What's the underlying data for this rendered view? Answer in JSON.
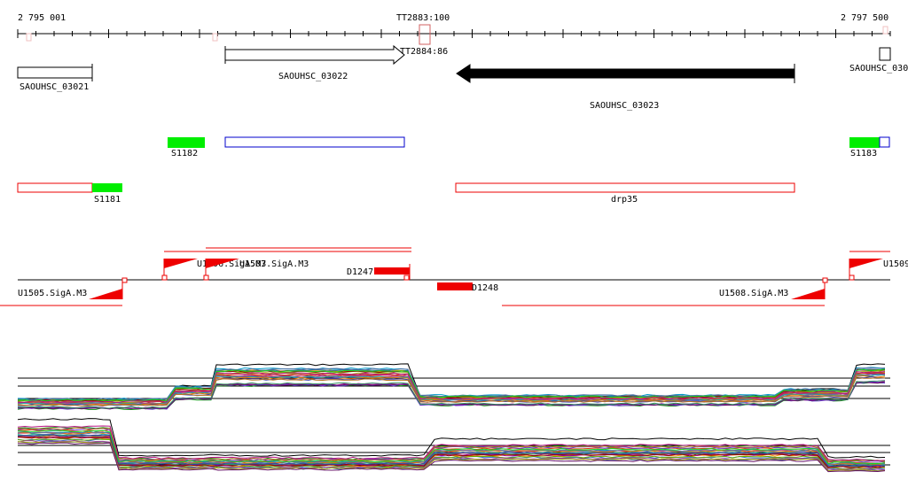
{
  "ruler": {
    "start_label": "2 795 001",
    "end_label": "2 797 500",
    "marker_label": "TT2883:100"
  },
  "genes": [
    {
      "id": "gene-saouhsc-03021",
      "label": "SAOUHSC_03021"
    },
    {
      "id": "gene-saouhsc-03022",
      "label": "SAOUHSC_03022"
    },
    {
      "id": "gene-saouhsc-03023",
      "label": "SAOUHSC_03023"
    },
    {
      "id": "gene-saouhsc-0302x",
      "label": "SAOUHSC_030"
    }
  ],
  "terminator_label": "TT2884:86",
  "srnas": [
    {
      "id": "srna-s1182",
      "label": "S1182"
    },
    {
      "id": "srna-s1183",
      "label": "S1183"
    },
    {
      "id": "srna-s1181",
      "label": "S1181"
    }
  ],
  "region_label": "drp35",
  "promoters": [
    {
      "id": "promoter-u1505",
      "label": "U1505.SigA.M3"
    },
    {
      "id": "promoter-u1506",
      "label": "U1506.SigA.M3"
    },
    {
      "id": "promoter-u1507",
      "label": "U1507.SigA.M3"
    },
    {
      "id": "promoter-u1508",
      "label": "U1508.SigA.M3"
    },
    {
      "id": "promoter-u1509",
      "label": "U1509"
    }
  ],
  "deletions": [
    {
      "id": "deletion-d1247",
      "label": "D1247"
    },
    {
      "id": "deletion-d1248",
      "label": "D1248"
    }
  ],
  "colors": {
    "gene_outline": "#000000",
    "gene_reverse_fill": "#000000",
    "srna_fill": "#00ee00",
    "region_outline": "#ee0000",
    "blue_outline": "#0000cc",
    "promoter": "#ee0000",
    "deletion": "#ee0000"
  }
}
